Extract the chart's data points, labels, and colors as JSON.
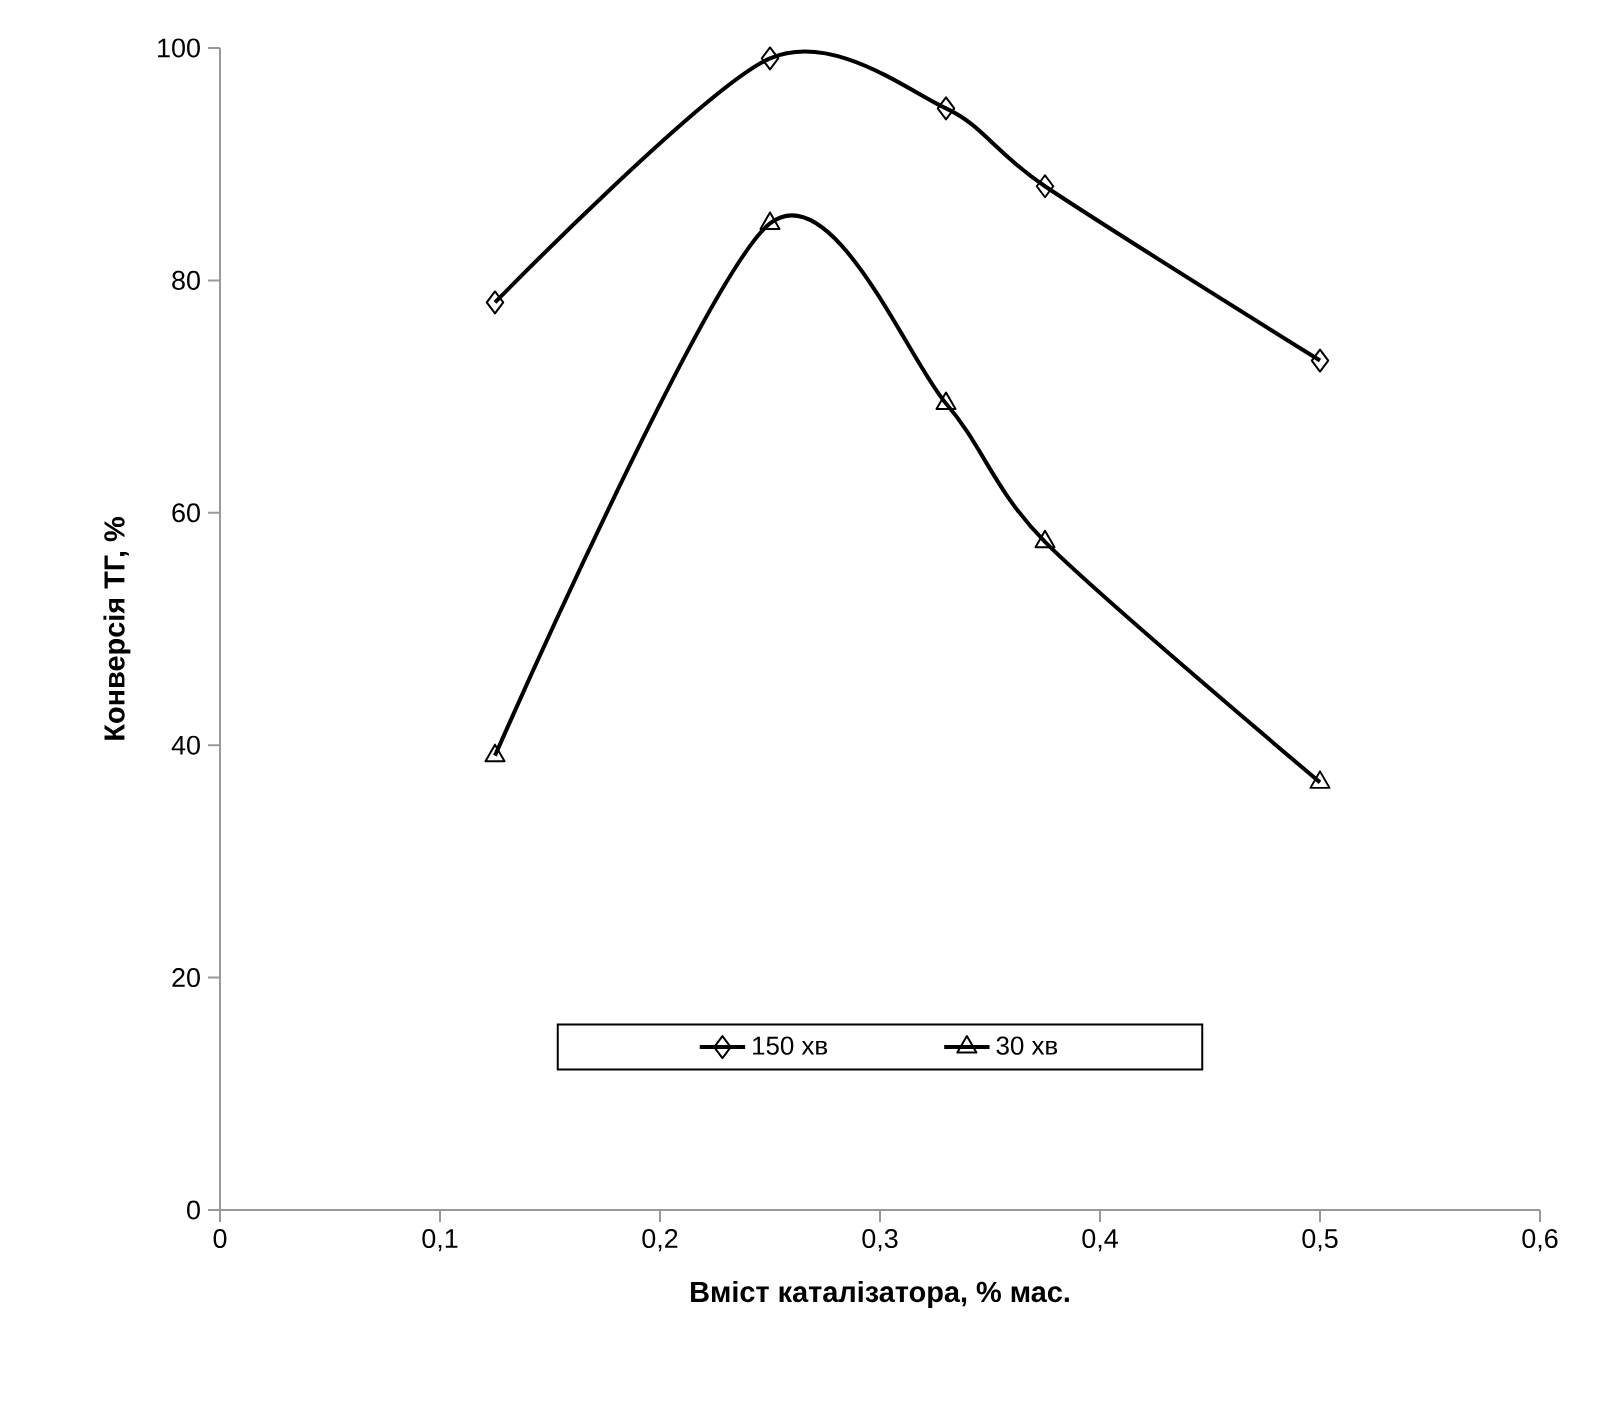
{
  "chart_data": {
    "type": "line",
    "xlabel": "Вміст каталізатора, % мас.",
    "ylabel": "Конверсія ТГ, %",
    "xlim": [
      0,
      0.6
    ],
    "xticks": [
      0,
      {
        "value": 0.1,
        "label": "0,1"
      },
      {
        "value": 0.2,
        "label": "0,2"
      },
      {
        "value": 0.3,
        "label": "0,3"
      },
      {
        "value": 0.4,
        "label": "0,4"
      },
      {
        "value": 0.5,
        "label": "0,5"
      },
      {
        "value": 0.6,
        "label": "0,6"
      }
    ],
    "ylim": [
      0,
      100
    ],
    "yticks": [
      0,
      20,
      40,
      60,
      80,
      100
    ],
    "grid": false,
    "legend": "bottom",
    "line_style": "solid",
    "x": [
      0.125,
      0.25,
      0.33,
      0.375,
      0.5
    ],
    "series": [
      {
        "name": "150 хв",
        "color": "#000000",
        "marker": "diamond",
        "values": [
          78.1,
          99.1,
          94.8,
          88.1,
          73.1
        ]
      },
      {
        "name": "30 хв",
        "color": "#000000",
        "marker": "triangle",
        "values": [
          39.1,
          84.9,
          69.4,
          57.5,
          36.8
        ]
      }
    ]
  }
}
